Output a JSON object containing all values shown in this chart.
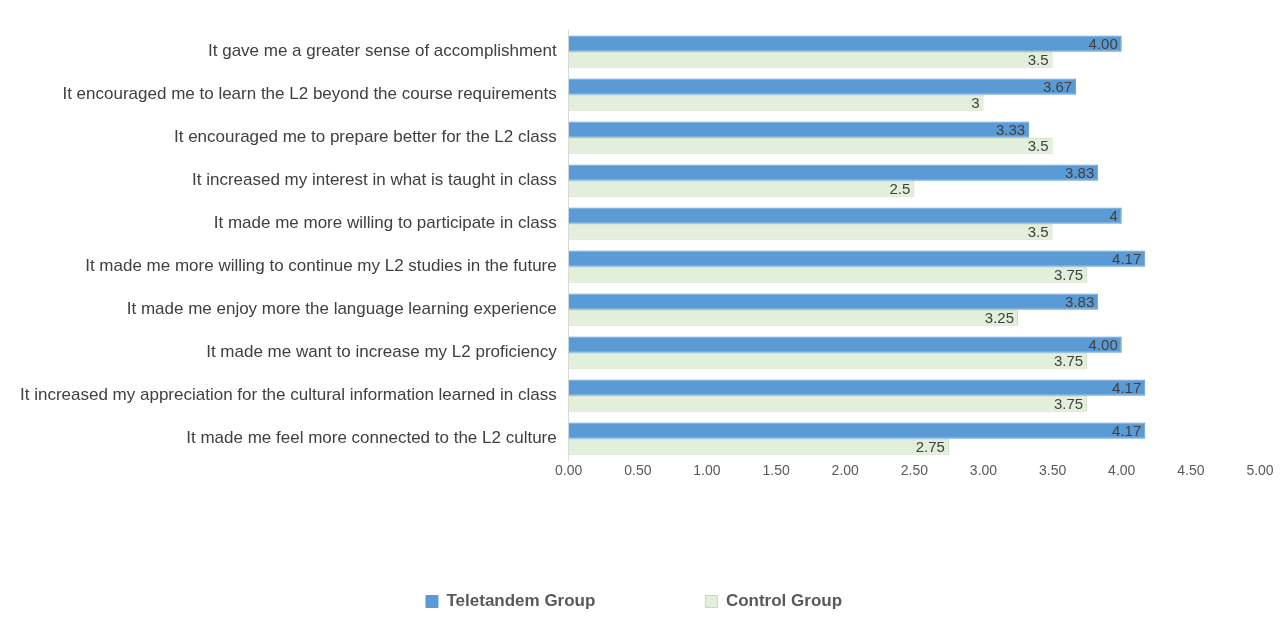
{
  "chart_data": {
    "type": "bar",
    "orientation": "horizontal",
    "categories": [
      "It gave me a greater sense of accomplishment",
      "It encouraged me to learn the L2 beyond the course requirements",
      "It encouraged me to prepare better for the L2 class",
      "It increased my interest in what is taught in class",
      "It made me more willing to participate in class",
      "It made me more willing to continue my L2 studies in the future",
      "It made me enjoy more the language learning experience",
      "It made me want to increase my L2 proficiency",
      "It increased my appreciation for the cultural information learned in class",
      "It made me feel more connected to the L2 culture"
    ],
    "series": [
      {
        "name": "Teletandem Group",
        "color": "#5b9bd5",
        "values": [
          4.0,
          3.67,
          3.33,
          3.83,
          4,
          4.17,
          3.83,
          4.0,
          4.17,
          4.17
        ],
        "value_labels": [
          "4.00",
          "3.67",
          "3.33",
          "3.83",
          "4",
          "4.17",
          "3.83",
          "4.00",
          "4.17",
          "4.17"
        ]
      },
      {
        "name": "Control Group",
        "color": "#e2efda",
        "values": [
          3.5,
          3,
          3.5,
          2.5,
          3.5,
          3.75,
          3.25,
          3.75,
          3.75,
          2.75
        ],
        "value_labels": [
          "3.5",
          "3",
          "3.5",
          "2.5",
          "3.5",
          "3.75",
          "3.25",
          "3.75",
          "3.75",
          "2.75"
        ]
      }
    ],
    "xlim": [
      0,
      5
    ],
    "xticks": [
      {
        "value": 0,
        "label": "0.00"
      },
      {
        "value": 0.5,
        "label": "0.50"
      },
      {
        "value": 1,
        "label": "1.00"
      },
      {
        "value": 1.5,
        "label": "1.50"
      },
      {
        "value": 2,
        "label": "2.00"
      },
      {
        "value": 2.5,
        "label": "2.50"
      },
      {
        "value": 3,
        "label": "3.00"
      },
      {
        "value": 3.5,
        "label": "3.50"
      },
      {
        "value": 4,
        "label": "4.00"
      },
      {
        "value": 4.5,
        "label": "4.50"
      },
      {
        "value": 5,
        "label": "5.00"
      }
    ],
    "grid": false,
    "legend": "bottom"
  }
}
